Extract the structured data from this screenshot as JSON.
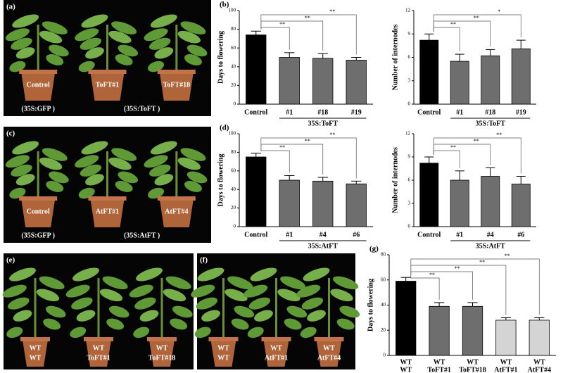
{
  "photos": [
    {
      "panel": "(a)",
      "pots": [
        "Control",
        "ToFT#1",
        "ToFT#18"
      ],
      "groups": [
        "(35S:GFP )",
        "(35S:ToFT )"
      ]
    },
    {
      "panel": "(c)",
      "pots": [
        "Control",
        "AtFT#1",
        "AtFT#4"
      ],
      "groups": [
        "(35S:GFP )",
        "(35S:AtFT )"
      ]
    },
    {
      "panel": "(e)",
      "pots": [
        [
          "WT",
          "WT"
        ],
        [
          "WT",
          "ToFT#1"
        ],
        [
          "WT",
          "ToFT#18"
        ]
      ]
    },
    {
      "panel": "(f)",
      "pots": [
        [
          "WT",
          "WT"
        ],
        [
          "WT",
          "AtFT#1"
        ],
        [
          "WT",
          "AtFT#4"
        ]
      ]
    }
  ],
  "chart_data": [
    {
      "type": "bar",
      "panel": "(b)",
      "ylabel": "Days to flowering",
      "xlabel": "35S:ToFT",
      "categories": [
        "Control",
        "#1",
        "#18",
        "#19"
      ],
      "values": [
        74,
        50,
        49,
        47
      ],
      "errors": [
        4,
        5,
        5,
        3
      ],
      "colors": [
        "#000000",
        "#6e6e6e",
        "#6e6e6e",
        "#6e6e6e"
      ],
      "ylim": [
        0,
        100
      ],
      "yticks": [
        0,
        20,
        40,
        60,
        80,
        100
      ],
      "annotations": [
        "**",
        "**",
        "**"
      ]
    },
    {
      "type": "bar",
      "ylabel": "Number of internodes",
      "xlabel": "35S:ToFT",
      "categories": [
        "Control",
        "#1",
        "#18",
        "#19"
      ],
      "values": [
        8.2,
        5.5,
        6.2,
        7.1
      ],
      "errors": [
        0.8,
        0.9,
        0.8,
        1.1
      ],
      "colors": [
        "#000000",
        "#6e6e6e",
        "#6e6e6e",
        "#6e6e6e"
      ],
      "ylim": [
        0,
        12
      ],
      "yticks": [
        0,
        3,
        6,
        9,
        12
      ],
      "annotations": [
        "**",
        "**",
        "*"
      ]
    },
    {
      "type": "bar",
      "panel": "(d)",
      "ylabel": "Days to flowering",
      "xlabel": "35S:AtFT",
      "categories": [
        "Control",
        "#1",
        "#4",
        "#6"
      ],
      "values": [
        75,
        50,
        49,
        46
      ],
      "errors": [
        4,
        5,
        4,
        3
      ],
      "colors": [
        "#000000",
        "#6e6e6e",
        "#6e6e6e",
        "#6e6e6e"
      ],
      "ylim": [
        0,
        100
      ],
      "yticks": [
        0,
        20,
        40,
        60,
        80,
        100
      ],
      "annotations": [
        "**",
        "**",
        "**"
      ]
    },
    {
      "type": "bar",
      "ylabel": "Number of internodes",
      "xlabel": "35S:AtFT",
      "categories": [
        "Control",
        "#1",
        "#4",
        "#6"
      ],
      "values": [
        8.2,
        6.0,
        6.5,
        5.5
      ],
      "errors": [
        0.8,
        1.2,
        1.1,
        1.0
      ],
      "colors": [
        "#000000",
        "#6e6e6e",
        "#6e6e6e",
        "#6e6e6e"
      ],
      "ylim": [
        0,
        12
      ],
      "yticks": [
        0,
        3,
        6,
        9,
        12
      ],
      "annotations": [
        "**",
        "**",
        "**"
      ]
    },
    {
      "type": "bar",
      "panel": "(g)",
      "ylabel": "Days to flowering",
      "categories": [
        [
          "WT",
          "WT"
        ],
        [
          "WT",
          "ToFT#1"
        ],
        [
          "WT",
          "ToFT#18"
        ],
        [
          "WT",
          "AtFT#1"
        ],
        [
          "WT",
          "AtFT#4"
        ]
      ],
      "values": [
        59,
        39,
        39,
        28,
        28
      ],
      "errors": [
        3,
        3,
        3,
        2,
        2
      ],
      "colors": [
        "#000000",
        "#6e6e6e",
        "#6e6e6e",
        "#d4d4d4",
        "#d4d4d4"
      ],
      "ylim": [
        0,
        80
      ],
      "yticks": [
        0,
        20,
        40,
        60,
        80
      ],
      "annotations": [
        "**",
        "**",
        "**",
        "**"
      ]
    }
  ]
}
